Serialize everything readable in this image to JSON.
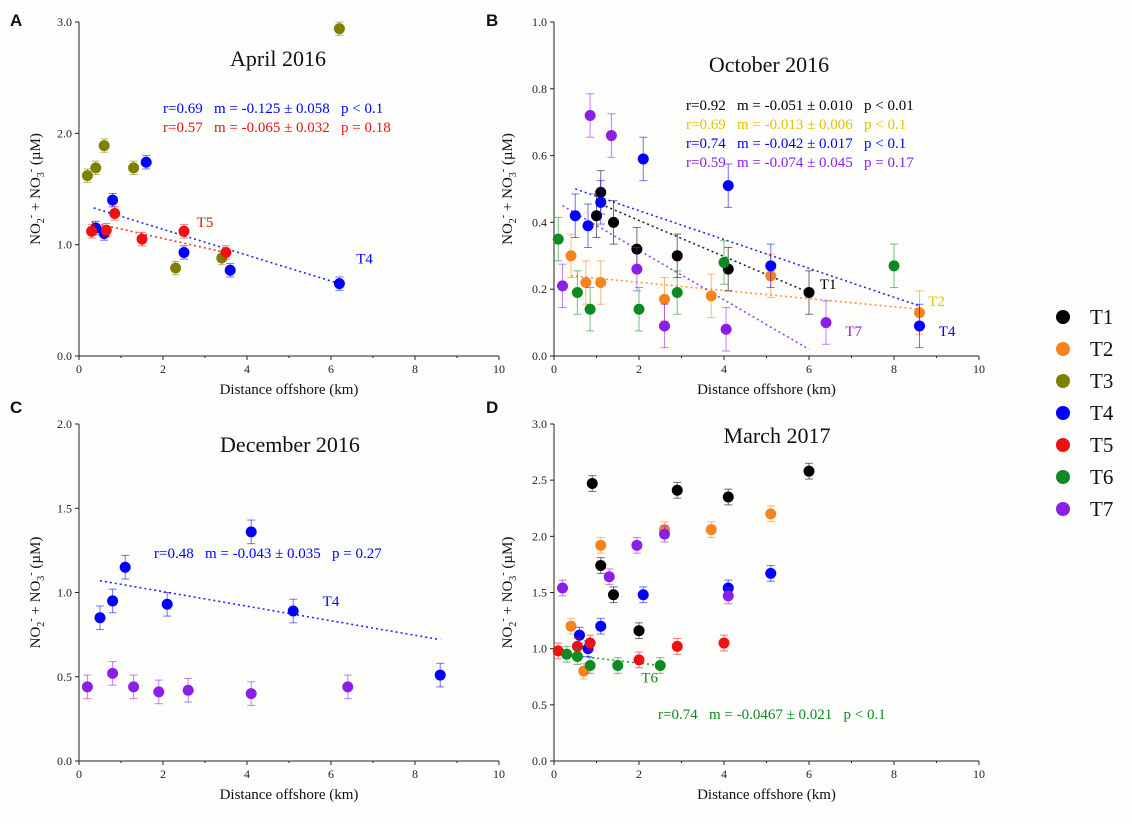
{
  "legend": [
    {
      "name": "T1",
      "color": "#000000"
    },
    {
      "name": "T2",
      "color": "#f5841f"
    },
    {
      "name": "T3",
      "color": "#808000"
    },
    {
      "name": "T4",
      "color": "#0000ff"
    },
    {
      "name": "T5",
      "color": "#ee1111"
    },
    {
      "name": "T6",
      "color": "#0e8a22"
    },
    {
      "name": "T7",
      "color": "#8b1fe8"
    }
  ],
  "legend_placement": "right",
  "chart_data": [
    {
      "type": "scatter",
      "panel": "A",
      "title": "April 2016",
      "xlabel": "Distance offshore (km)",
      "ylabel": "NO2- + NO3- (µM)",
      "xlim": [
        0,
        10
      ],
      "ylim": [
        0,
        3
      ],
      "xticks": [
        0,
        2,
        4,
        6,
        8,
        10
      ],
      "yticks": [
        0.0,
        1.0,
        2.0,
        3.0
      ],
      "ytick_labels": [
        "0.0",
        "1.0",
        "2.0",
        "3.0"
      ],
      "error_bar": 0.06,
      "series": [
        {
          "name": "T3",
          "color": "#808000",
          "x": [
            0.2,
            0.4,
            0.6,
            1.3,
            2.3,
            3.4,
            6.2
          ],
          "y": [
            1.62,
            1.69,
            1.89,
            1.69,
            0.79,
            0.88,
            2.94
          ]
        },
        {
          "name": "T4",
          "color": "#0000ff",
          "x": [
            0.4,
            0.6,
            0.8,
            1.6,
            2.5,
            3.6,
            6.2
          ],
          "y": [
            1.15,
            1.1,
            1.4,
            1.74,
            0.93,
            0.77,
            0.65
          ]
        },
        {
          "name": "T5",
          "color": "#ee1111",
          "x": [
            0.3,
            0.65,
            0.85,
            1.5,
            2.5,
            3.5
          ],
          "y": [
            1.12,
            1.13,
            1.28,
            1.05,
            1.12,
            0.93
          ]
        }
      ],
      "trendlines": [
        {
          "series": "T4",
          "color": "#0000ff",
          "x": [
            0.35,
            6.2
          ],
          "y": [
            1.33,
            0.65
          ]
        },
        {
          "series": "T5",
          "color": "#ee1111",
          "x": [
            0.3,
            3.6
          ],
          "y": [
            1.2,
            0.92
          ]
        }
      ],
      "stats": [
        {
          "color": "#0000ff",
          "text": "r=0.69   m = -0.125 ± 0.058   p < 0.1"
        },
        {
          "color": "#ee1111",
          "text": "r=0.57   m = -0.065 ± 0.032   p = 0.18"
        }
      ],
      "series_labels": [
        {
          "text": "T5",
          "color": "#ee1111",
          "x": 3.0,
          "y": 1.16
        },
        {
          "text": "T4",
          "color": "#0000ff",
          "x": 6.8,
          "y": 0.83
        }
      ]
    },
    {
      "type": "scatter",
      "panel": "B",
      "title": "October 2016",
      "xlabel": "Distance offshore (km)",
      "ylabel": "NO2- + NO3- (µM)",
      "xlim": [
        0,
        10
      ],
      "ylim": [
        0,
        1
      ],
      "xticks": [
        0,
        2,
        4,
        6,
        8,
        10
      ],
      "yticks": [
        0.0,
        0.2,
        0.4,
        0.6,
        0.8,
        1.0
      ],
      "ytick_labels": [
        "0.0",
        "0.2",
        "0.4",
        "0.6",
        "0.8",
        "1.0"
      ],
      "error_bar": 0.065,
      "series": [
        {
          "name": "T1",
          "color": "#000000",
          "x": [
            1.0,
            1.1,
            1.4,
            1.95,
            2.9,
            4.1,
            6.0
          ],
          "y": [
            0.42,
            0.49,
            0.4,
            0.32,
            0.3,
            0.26,
            0.19
          ]
        },
        {
          "name": "T2",
          "color": "#f5841f",
          "x": [
            0.4,
            0.75,
            1.1,
            2.6,
            3.7,
            5.1,
            8.6
          ],
          "y": [
            0.3,
            0.22,
            0.22,
            0.17,
            0.18,
            0.24,
            0.13
          ]
        },
        {
          "name": "T4",
          "color": "#0000ff",
          "x": [
            0.5,
            0.8,
            1.1,
            2.1,
            4.1,
            5.1,
            8.6
          ],
          "y": [
            0.42,
            0.39,
            0.46,
            0.59,
            0.51,
            0.27,
            0.09
          ]
        },
        {
          "name": "T6",
          "color": "#0e8a22",
          "x": [
            0.1,
            0.55,
            0.85,
            2.0,
            2.9,
            4.0,
            8.0
          ],
          "y": [
            0.35,
            0.19,
            0.14,
            0.14,
            0.19,
            0.28,
            0.27
          ]
        },
        {
          "name": "T7",
          "color": "#8b1fe8",
          "x": [
            0.2,
            0.85,
            1.35,
            1.95,
            2.6,
            4.05,
            6.4
          ],
          "y": [
            0.21,
            0.72,
            0.66,
            0.26,
            0.09,
            0.08,
            0.1
          ]
        }
      ],
      "trendlines": [
        {
          "series": "T1",
          "color": "#000000",
          "x": [
            1.0,
            6.0
          ],
          "y": [
            0.46,
            0.19
          ]
        },
        {
          "series": "T2",
          "color": "#f5841f",
          "x": [
            0.4,
            8.6
          ],
          "y": [
            0.24,
            0.14
          ]
        },
        {
          "series": "T4",
          "color": "#0000ff",
          "x": [
            0.5,
            8.6
          ],
          "y": [
            0.5,
            0.15
          ]
        },
        {
          "series": "T7",
          "color": "#8b1fe8",
          "x": [
            0.2,
            6.0
          ],
          "y": [
            0.45,
            0.02
          ]
        }
      ],
      "stats": [
        {
          "color": "#000000",
          "text": "r=0.92   m = -0.051 ± 0.010   p < 0.01"
        },
        {
          "color": "#e6c200",
          "text": "r=0.69   m = -0.013 ± 0.006   p < 0.1"
        },
        {
          "color": "#0000ff",
          "text": "r=0.74   m = -0.042 ± 0.017   p < 0.1"
        },
        {
          "color": "#8b1fe8",
          "text": "r=0.59   m = -0.074 ± 0.045   p = 0.17"
        }
      ],
      "series_labels": [
        {
          "text": "T1",
          "color": "#000000",
          "x": 6.45,
          "y": 0.2
        },
        {
          "text": "T2",
          "color": "#e6c200",
          "x": 9.0,
          "y": 0.15
        },
        {
          "text": "T7",
          "color": "#8b1fe8",
          "x": 7.05,
          "y": 0.06
        },
        {
          "text": "T4",
          "color": "#0000ff",
          "x": 9.25,
          "y": 0.06
        }
      ]
    },
    {
      "type": "scatter",
      "panel": "C",
      "title": "December 2016",
      "xlabel": "Distance offshore (km)",
      "ylabel": "NO2- + NO3- (µM)",
      "xlim": [
        0,
        10
      ],
      "ylim": [
        0,
        2
      ],
      "xticks": [
        0,
        2,
        4,
        6,
        8,
        10
      ],
      "yticks": [
        0.0,
        0.5,
        1.0,
        1.5,
        2.0
      ],
      "ytick_labels": [
        "0.0",
        "0.5",
        "1.0",
        "1.5",
        "2.0"
      ],
      "error_bar": 0.07,
      "series": [
        {
          "name": "T4",
          "color": "#0000ff",
          "x": [
            0.5,
            0.8,
            1.1,
            2.1,
            4.1,
            5.1,
            8.6
          ],
          "y": [
            0.85,
            0.95,
            1.15,
            0.93,
            1.36,
            0.89,
            0.51
          ]
        },
        {
          "name": "T7",
          "color": "#8b1fe8",
          "x": [
            0.2,
            0.8,
            1.3,
            1.9,
            2.6,
            4.1,
            6.4
          ],
          "y": [
            0.44,
            0.52,
            0.44,
            0.41,
            0.42,
            0.4,
            0.44
          ]
        }
      ],
      "trendlines": [
        {
          "series": "T4",
          "color": "#0000ff",
          "x": [
            0.5,
            8.6
          ],
          "y": [
            1.07,
            0.72
          ]
        }
      ],
      "stats": [
        {
          "color": "#0000ff",
          "text": "r=0.48   m = -0.043 ± 0.035   p = 0.27"
        }
      ],
      "series_labels": [
        {
          "text": "T4",
          "color": "#0000ff",
          "x": 6.0,
          "y": 0.92
        }
      ]
    },
    {
      "type": "scatter",
      "panel": "D",
      "title": "March 2017",
      "xlabel": "Distance offshore (km)",
      "ylabel": "NO2- + NO3- (µM)",
      "xlim": [
        0,
        10
      ],
      "ylim": [
        0,
        3
      ],
      "xticks": [
        0,
        2,
        4,
        6,
        8,
        10
      ],
      "yticks": [
        0.0,
        0.5,
        1.0,
        1.5,
        2.0,
        2.5,
        3.0
      ],
      "ytick_labels": [
        "0.0",
        "0.5",
        "1.0",
        "1.5",
        "2.0",
        "2.5",
        "3.0"
      ],
      "error_bar": 0.07,
      "series": [
        {
          "name": "T1",
          "color": "#000000",
          "x": [
            0.9,
            1.1,
            1.4,
            2.0,
            2.9,
            4.1,
            6.0
          ],
          "y": [
            2.47,
            1.74,
            1.48,
            1.16,
            2.41,
            2.35,
            2.58
          ]
        },
        {
          "name": "T2",
          "color": "#f5841f",
          "x": [
            0.4,
            0.7,
            1.1,
            2.6,
            3.7,
            5.1
          ],
          "y": [
            1.2,
            0.8,
            1.92,
            2.06,
            2.06,
            2.2
          ]
        },
        {
          "name": "T4",
          "color": "#0000ff",
          "x": [
            0.6,
            0.8,
            1.1,
            2.1,
            4.1,
            5.1
          ],
          "y": [
            1.12,
            1.0,
            1.2,
            1.48,
            1.54,
            1.67
          ]
        },
        {
          "name": "T5",
          "color": "#ee1111",
          "x": [
            0.1,
            0.55,
            0.85,
            2.0,
            2.9,
            4.0
          ],
          "y": [
            0.98,
            1.02,
            1.05,
            0.9,
            1.02,
            1.05
          ]
        },
        {
          "name": "T6",
          "color": "#0e8a22",
          "x": [
            0.3,
            0.55,
            0.85,
            1.5,
            2.5
          ],
          "y": [
            0.95,
            0.93,
            0.85,
            0.85,
            0.85
          ]
        },
        {
          "name": "T7",
          "color": "#8b1fe8",
          "x": [
            0.2,
            1.3,
            1.95,
            2.6,
            4.1
          ],
          "y": [
            1.54,
            1.64,
            1.92,
            2.02,
            1.47
          ]
        }
      ],
      "trendlines": [
        {
          "series": "T6",
          "color": "#0e8a22",
          "x": [
            0.2,
            2.5
          ],
          "y": [
            0.95,
            0.85
          ]
        }
      ],
      "stats": [
        {
          "color": "#0e8a22",
          "text": "r=0.74   m = -0.0467 ± 0.021   p < 0.1"
        }
      ],
      "series_labels": [
        {
          "text": "T6",
          "color": "#0e8a22",
          "x": 2.25,
          "y": 0.7
        }
      ]
    }
  ]
}
